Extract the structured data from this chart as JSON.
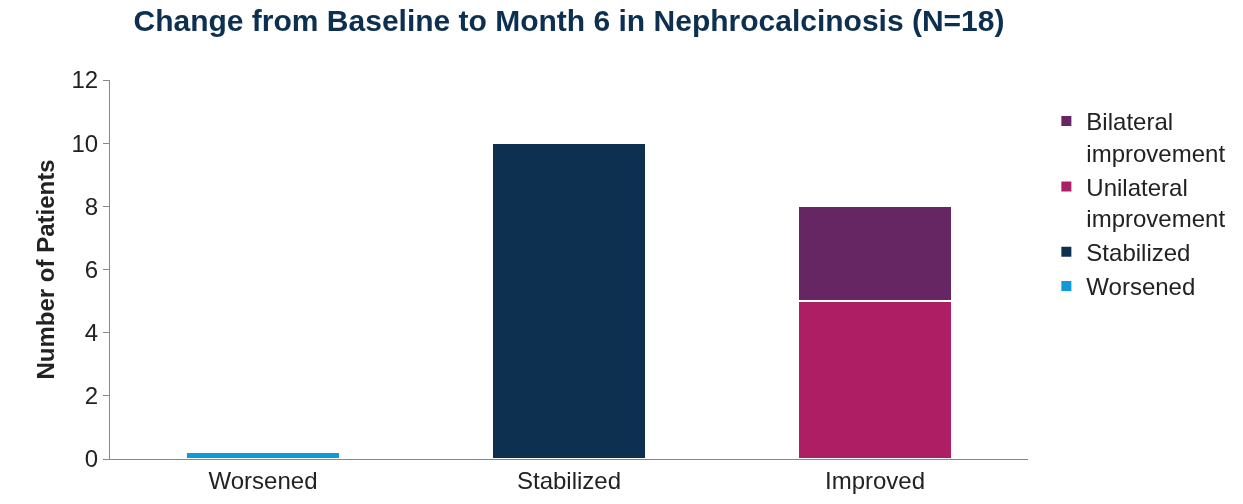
{
  "chart_data": {
    "type": "bar",
    "stacked": true,
    "title": "Change from Baseline to Month 6 in Nephrocalcinosis (N=18)",
    "ylabel": "Number of Patients",
    "categories": [
      "Worsened",
      "Stabilized",
      "Improved"
    ],
    "series": [
      {
        "name": "Worsened",
        "color": "#0e9ad7",
        "values": [
          0.2,
          null,
          null
        ]
      },
      {
        "name": "Stabilized",
        "color": "#0d3050",
        "values": [
          null,
          10,
          null
        ]
      },
      {
        "name": "Unilateral improvement",
        "color": "#ae1e64",
        "values": [
          null,
          null,
          5
        ]
      },
      {
        "name": "Bilateral improvement",
        "color": "#662563",
        "values": [
          null,
          null,
          3
        ]
      }
    ],
    "ylim": [
      0,
      12
    ],
    "yticks": [
      0,
      2,
      4,
      6,
      8,
      10,
      12
    ],
    "grid": false,
    "legend": "right"
  }
}
